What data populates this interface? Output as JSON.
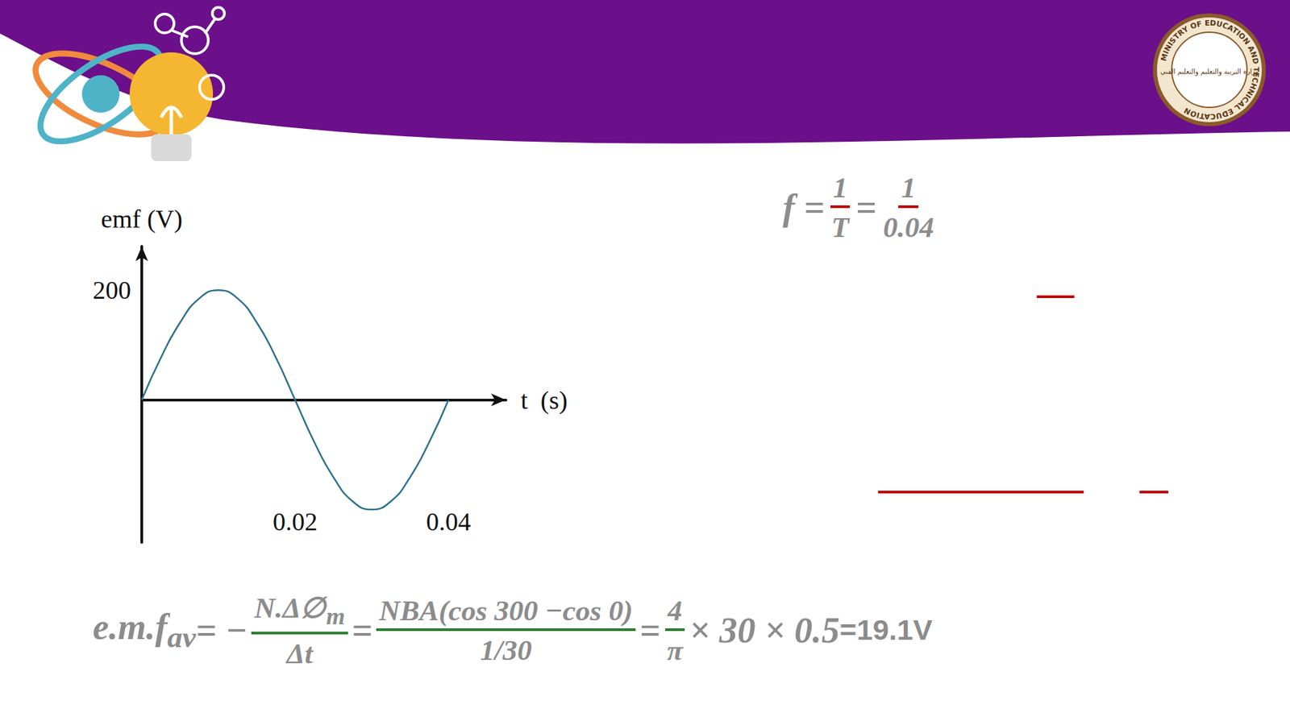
{
  "chart_data": {
    "type": "line",
    "x": [
      0,
      0.0025,
      0.005,
      0.0075,
      0.01,
      0.0125,
      0.015,
      0.0175,
      0.02,
      0.0225,
      0.025,
      0.0275,
      0.03,
      0.0325,
      0.035,
      0.0375,
      0.04
    ],
    "values": [
      0,
      77,
      141,
      185,
      200,
      185,
      141,
      77,
      0,
      -77,
      -141,
      -185,
      -200,
      -185,
      -141,
      -77,
      0
    ],
    "color": "#2b6f8e",
    "x_label": "t  (s)",
    "y_label": "emf (V)",
    "xlim": [
      0,
      0.0475
    ],
    "ylim": [
      -260,
      280
    ],
    "xticks": [
      0.02,
      0.04
    ],
    "yticks": [
      200
    ],
    "grid": false
  },
  "formulas": {
    "frequency": [
      {
        "text": "f = "
      },
      {
        "num": {
          "text": "1"
        },
        "den": {
          "text": "T"
        },
        "line_color": "#c00000"
      },
      {
        "text": " = "
      },
      {
        "num": {
          "text": "1"
        },
        "den": {
          "text": "0.04"
        },
        "line_color": "#c00000"
      }
    ],
    "average_emf": [
      {
        "text": "e.m.f",
        "sub": "av"
      },
      {
        "text": " = −"
      },
      {
        "num": {
          "text": "N.Δ∅",
          "sub": "m"
        },
        "den": {
          "text": "Δt"
        },
        "line_color": "#2e7d32"
      },
      {
        "text": " = "
      },
      {
        "num": {
          "text": "NBA(cos 300 −cos 0)"
        },
        "den": {
          "text": "1/30"
        },
        "line_color": "#2e7d32"
      },
      {
        "text": " = "
      },
      {
        "num": {
          "text": "4"
        },
        "den": {
          "text": "π"
        },
        "line_color": "#2e7d32"
      },
      {
        "text": " × 30 × 0.5 "
      },
      {
        "text": "=19.1V",
        "plain": true
      }
    ]
  },
  "logo": {
    "english": "MINISTRY OF EDUCATION AND TECHNICAL EDUCATION",
    "arabic": "وزارة التربية والتعليم والتعليم الفني"
  }
}
